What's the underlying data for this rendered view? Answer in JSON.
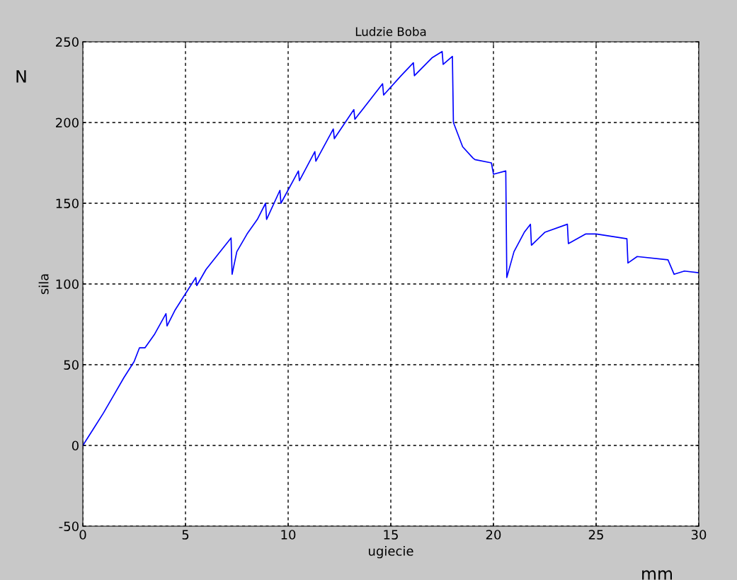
{
  "chart_data": {
    "type": "line",
    "title": "Ludzie Boba",
    "xlabel": "ugiecie",
    "ylabel": "sila",
    "annotations": [
      "N",
      "mm"
    ],
    "xlim": [
      0,
      30
    ],
    "ylim": [
      -50,
      250
    ],
    "xticks": [
      0,
      5,
      10,
      15,
      20,
      25,
      30
    ],
    "yticks": [
      -50,
      0,
      50,
      100,
      150,
      200,
      250
    ],
    "grid": true,
    "line_style": "solid",
    "marker": "none",
    "series": [
      {
        "color": "#0000ff",
        "x": [
          0,
          0.5,
          1,
          1.5,
          2,
          2.5,
          2.76,
          3.03,
          3.5,
          4.05,
          4.1,
          4.5,
          5,
          5.5,
          5.55,
          6,
          6.5,
          7.22,
          7.27,
          7.5,
          8,
          8.5,
          8.9,
          8.95,
          9.6,
          9.65,
          10.5,
          10.55,
          11.3,
          11.35,
          12.2,
          12.25,
          13.2,
          13.25,
          14.6,
          14.65,
          15.5,
          16.1,
          16.15,
          17,
          17.5,
          17.55,
          18.0,
          18.05,
          18.5,
          19.0,
          19.1,
          19.9,
          20.0,
          20.6,
          20.65,
          21.0,
          21.5,
          21.8,
          21.85,
          22.5,
          23.6,
          23.65,
          24.5,
          25,
          26.5,
          26.55,
          27,
          28.5,
          28.8,
          29.3,
          30
        ],
        "values": [
          0,
          10,
          20,
          31,
          42,
          52,
          60.5,
          60.5,
          69,
          81.6,
          74,
          84,
          94,
          104,
          99,
          109,
          117,
          128.5,
          106,
          120,
          131,
          140,
          150,
          140,
          158,
          150,
          170,
          164,
          182,
          176,
          196,
          190,
          208,
          202,
          224,
          217,
          229,
          237,
          229,
          240,
          244,
          236,
          241,
          200,
          185,
          178,
          177,
          175,
          168,
          170,
          104,
          120,
          132,
          137,
          124,
          132,
          137,
          125,
          131,
          131,
          128,
          113,
          117,
          115,
          106,
          108,
          107
        ]
      }
    ]
  }
}
